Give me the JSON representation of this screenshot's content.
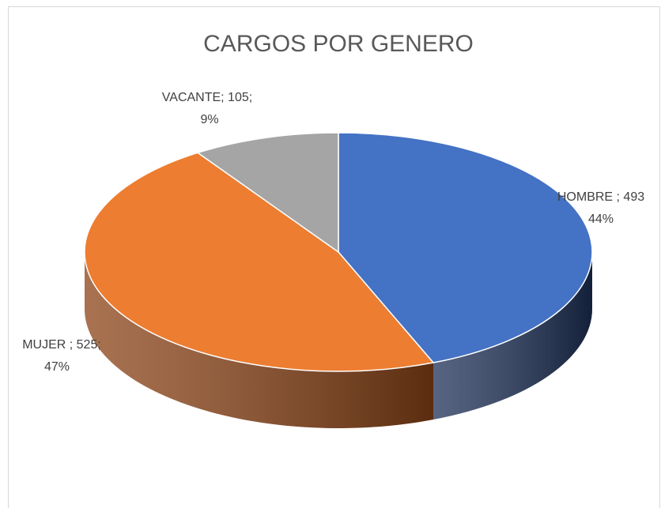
{
  "chart_data": {
    "type": "pie",
    "title": "CARGOS POR GENERO",
    "values": [
      493,
      525,
      105
    ],
    "value_labels": [
      "HOMBRE ; 493",
      "MUJER ; 525;",
      "VACANTE; 105;"
    ],
    "percent_labels": [
      "44%",
      "47%",
      "9%"
    ],
    "colors": [
      "#4472c4",
      "#ed7d31",
      "#a5a5a5"
    ],
    "side_colors": [
      "#1e3158",
      "#8c4417",
      "#6b6b6b"
    ]
  }
}
